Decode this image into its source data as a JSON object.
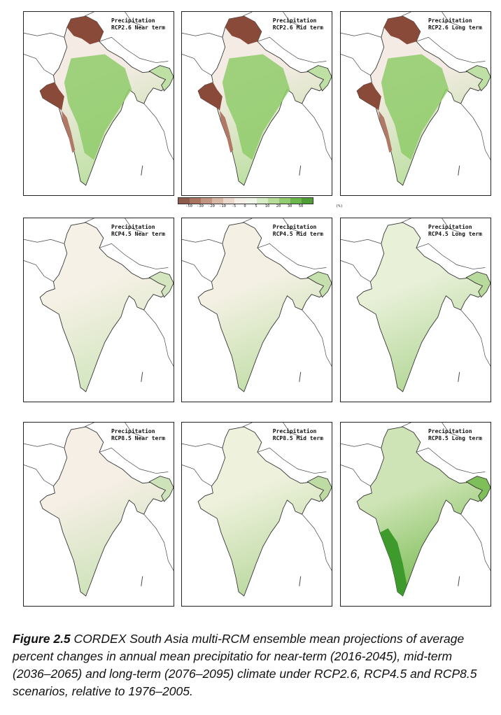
{
  "panels": [
    {
      "line1": "Precipitation",
      "line2": "RCP2.6 Near term",
      "scenario": "RCP2.6",
      "period": "near",
      "tone": "#f4ebe4",
      "land": "#bfe0a5",
      "accent": "#8a4a3a"
    },
    {
      "line1": "Precipitation",
      "line2": "RCP2.6 Mid term",
      "scenario": "RCP2.6",
      "period": "mid",
      "tone": "#f4ebe4",
      "land": "#bfe0a5",
      "accent": "#8a4a3a"
    },
    {
      "line1": "Precipitation",
      "line2": "RCP2.6 Long term",
      "scenario": "RCP2.6",
      "period": "long",
      "tone": "#f4ebe4",
      "land": "#bfe0a5",
      "accent": "#8a4a3a"
    },
    {
      "line1": "Precipitation",
      "line2": "RCP4.5 Near term",
      "scenario": "RCP4.5",
      "period": "near",
      "tone": "#f6f1e6",
      "land": "#d3e6c0",
      "accent": "#f6f1e6"
    },
    {
      "line1": "Precipitation",
      "line2": "RCP4.5 Mid term",
      "scenario": "RCP4.5",
      "period": "mid",
      "tone": "#f4f1e4",
      "land": "#c6e0ad",
      "accent": "#f4f1e4"
    },
    {
      "line1": "Precipitation",
      "line2": "RCP4.5 Long term",
      "scenario": "RCP4.5",
      "period": "long",
      "tone": "#e8f0d8",
      "land": "#b7d99c",
      "accent": "#e8f0d8"
    },
    {
      "line1": "Precipitation",
      "line2": "RCP8.5 Near term",
      "scenario": "RCP8.5",
      "period": "near",
      "tone": "#f6efe6",
      "land": "#cfe3bb",
      "accent": "#f0d8d0"
    },
    {
      "line1": "Precipitation",
      "line2": "RCP8.5 Mid term",
      "scenario": "RCP8.5",
      "period": "mid",
      "tone": "#eef1dc",
      "land": "#bedba4",
      "accent": "#eef1dc"
    },
    {
      "line1": "Precipitation",
      "line2": "RCP8.5 Long term",
      "scenario": "RCP8.5",
      "period": "long",
      "tone": "#cfe4b6",
      "land": "#7fbf5a",
      "accent": "#cfe4b6"
    }
  ],
  "colorbar": {
    "labels": [
      "-50",
      "-30",
      "-20",
      "-10",
      "-5",
      "0",
      "5",
      "10",
      "20",
      "30",
      "50"
    ],
    "unit": "(%)",
    "colors": [
      "#8d5a4b",
      "#a8735f",
      "#c19581",
      "#d8b7a5",
      "#ebd8cc",
      "#f6efe8",
      "#f0f6ea",
      "#d7ecc6",
      "#b8dd9b",
      "#92cb70",
      "#6db64c",
      "#4e9e35"
    ]
  },
  "caption": {
    "figure_label": "Figure 2.5",
    "text": " CORDEX South Asia multi-RCM ensemble mean projections of average percent changes in annual mean precipitatio for near-term (2016-2045), mid-term (2036–2065) and long-term (2076–2095) climate under RCP2.6, RCP4.5 and RCP8.5 scenarios, relative to 1976–2005."
  }
}
